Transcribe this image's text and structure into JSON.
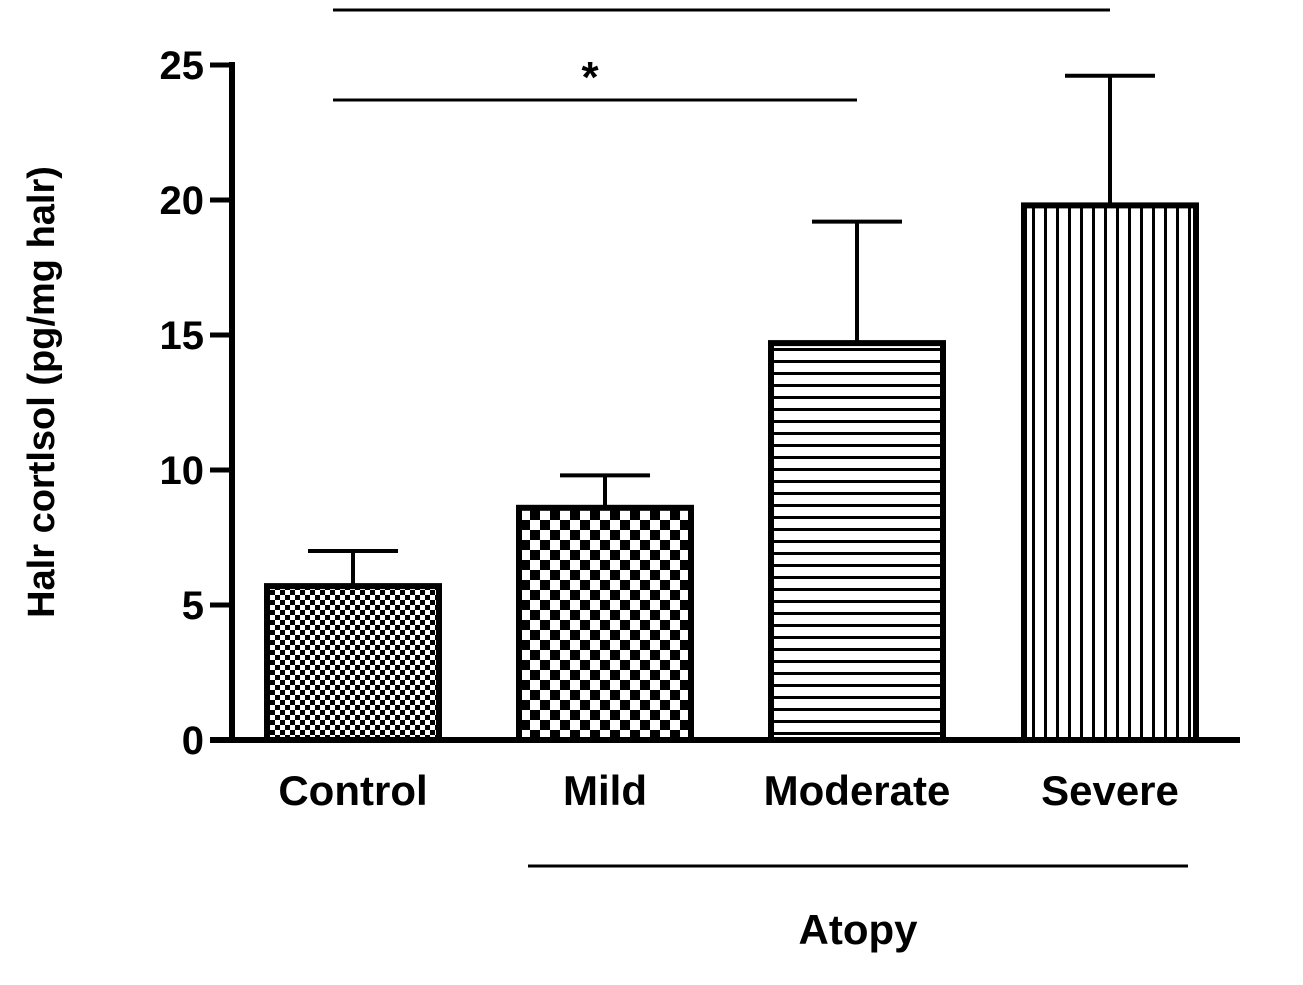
{
  "chart_data": {
    "type": "bar",
    "title": "",
    "xlabel": "",
    "ylabel": "Halr cortlsol (pg/mg halr)",
    "ylim": [
      0,
      25
    ],
    "yticks": [
      "0",
      "5",
      "10",
      "15",
      "20",
      "25"
    ],
    "categories": [
      "Control",
      "Mild",
      "Moderate",
      "Severe"
    ],
    "values": [
      5.7,
      8.6,
      14.7,
      19.8
    ],
    "errors": [
      1.3,
      1.2,
      4.5,
      4.8
    ],
    "patterns": [
      "fine-checker",
      "coarse-checker",
      "horizontal-lines",
      "vertical-lines"
    ],
    "group": {
      "label": "Atopy",
      "from": "Mild",
      "to": "Severe"
    },
    "significance": [
      {
        "label": "*",
        "from": "Control",
        "to": "Moderate"
      },
      {
        "label": "",
        "from": "Control",
        "to": "Severe"
      }
    ],
    "grid": false,
    "legend": "none",
    "colors": {
      "ink": "#000000",
      "background": "#ffffff"
    }
  }
}
